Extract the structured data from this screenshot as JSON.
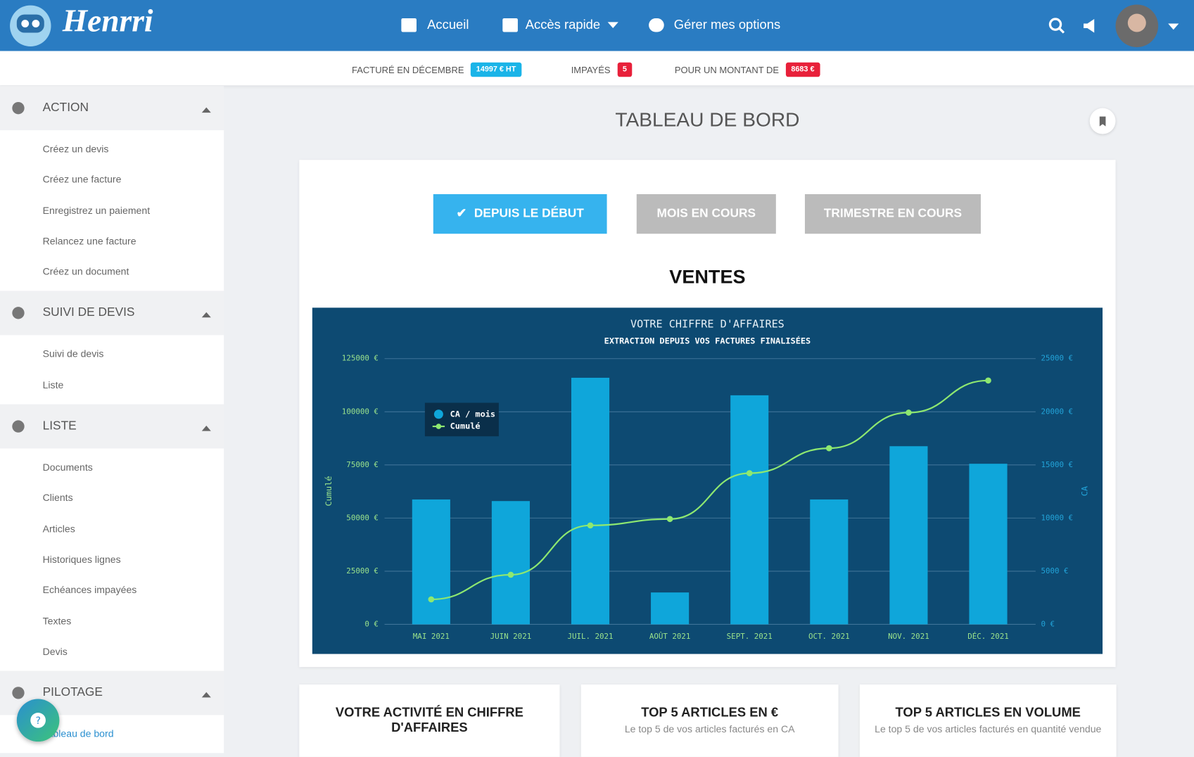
{
  "nav": {
    "logo": "Henrri",
    "items": [
      "Accueil",
      "Accès rapide",
      "Gérer mes options"
    ]
  },
  "stats": [
    {
      "label": "FACTURÉ EN DÉCEMBRE",
      "badge": "14997 € HT",
      "color": "#1ab4e8"
    },
    {
      "label": "IMPAYÉS",
      "badge": "5",
      "color": "#e8203a"
    },
    {
      "label": "POUR UN MONTANT DE",
      "badge": "8683 €",
      "color": "#e8203a"
    }
  ],
  "sidebar": [
    {
      "title": "ACTION",
      "items": [
        "Créez un devis",
        "Créez une facture",
        "Enregistrez un paiement",
        "Relancez une facture",
        "Créez un document"
      ]
    },
    {
      "title": "SUIVI DE DEVIS",
      "items": [
        "Suivi de devis",
        "Liste"
      ]
    },
    {
      "title": "LISTE",
      "items": [
        "Documents",
        "Clients",
        "Articles",
        "Historiques lignes",
        "Echéances impayées",
        "Textes",
        "Devis"
      ]
    },
    {
      "title": "PILOTAGE",
      "items": [
        "Tableau de bord"
      ]
    }
  ],
  "page_title": "TABLEAU DE BORD",
  "filters": [
    "DEPUIS LE DÉBUT",
    "MOIS EN COURS",
    "TRIMESTRE EN COURS"
  ],
  "section_title": "VENTES",
  "chart_data": {
    "type": "bar-line",
    "title": "VOTRE CHIFFRE D'AFFAIRES",
    "subtitle": "EXTRACTION DEPUIS VOS FACTURES FINALISÉES",
    "categories": [
      "MAI 2021",
      "JUIN 2021",
      "JUIL. 2021",
      "AOÛT 2021",
      "SEPT. 2021",
      "OCT. 2021",
      "NOV. 2021",
      "DÉC. 2021"
    ],
    "series": [
      {
        "name": "CA / mois",
        "type": "bar",
        "axis": "y2",
        "color": "#0fa6da",
        "values": [
          11750,
          11600,
          23200,
          3000,
          21550,
          11750,
          16760,
          15110
        ]
      },
      {
        "name": "Cumulé",
        "type": "line",
        "axis": "y",
        "color": "#8ee870",
        "values": [
          11750,
          23350,
          46550,
          49550,
          71100,
          82850,
          99600,
          114700
        ]
      }
    ],
    "ylabel": "Cumulé",
    "y2label": "CA",
    "ylim": [
      0,
      125000
    ],
    "yticks": [
      {
        "value": 0,
        "label": "0 €"
      },
      {
        "value": 25000,
        "label": "25000 €"
      },
      {
        "value": 50000,
        "label": "50000 €"
      },
      {
        "value": 75000,
        "label": "75000 €"
      },
      {
        "value": 100000,
        "label": "100000 €"
      },
      {
        "value": 125000,
        "label": "125000 €"
      }
    ],
    "y2lim": [
      0,
      25000
    ],
    "y2ticks": [
      {
        "value": 0,
        "label": "0 €"
      },
      {
        "value": 5000,
        "label": "5000 €"
      },
      {
        "value": 10000,
        "label": "10000 €"
      },
      {
        "value": 15000,
        "label": "15000 €"
      },
      {
        "value": 20000,
        "label": "20000 €"
      },
      {
        "value": 25000,
        "label": "25000 €"
      }
    ],
    "grid": true,
    "legend": "top-left"
  },
  "cards": [
    {
      "title": "VOTRE ACTIVITÉ EN CHIFFRE D'AFFAIRES"
    },
    {
      "title": "TOP 5 ARTICLES EN €",
      "subtitle": "Le top 5 de vos articles facturés en CA"
    },
    {
      "title": "TOP 5 ARTICLES EN VOLUME",
      "subtitle": "Le top 5 de vos articles facturés en quantité vendue"
    }
  ]
}
